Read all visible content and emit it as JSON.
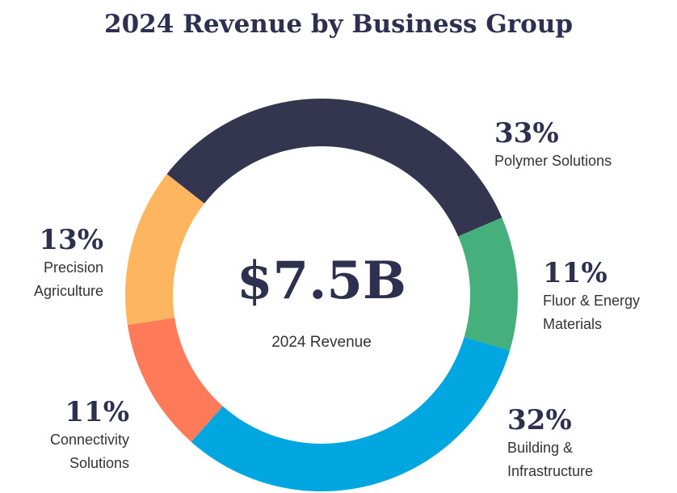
{
  "chart_data": {
    "type": "donut",
    "title": "2024 Revenue by Business Group",
    "categories": [
      "Polymer Solutions",
      "Fluor & Energy Materials",
      "Building & Infrastructure",
      "Connectivity Solutions",
      "Precision Agriculture"
    ],
    "values": [
      33,
      11,
      32,
      11,
      13
    ],
    "value_labels": [
      "33%",
      "11%",
      "32%",
      "11%",
      "13%"
    ],
    "colors": [
      "#34364f",
      "#45b07c",
      "#00a6e0",
      "#ff7a59",
      "#fdb55f"
    ],
    "center_value": "$7.5B",
    "center_label": "2024 Revenue"
  }
}
